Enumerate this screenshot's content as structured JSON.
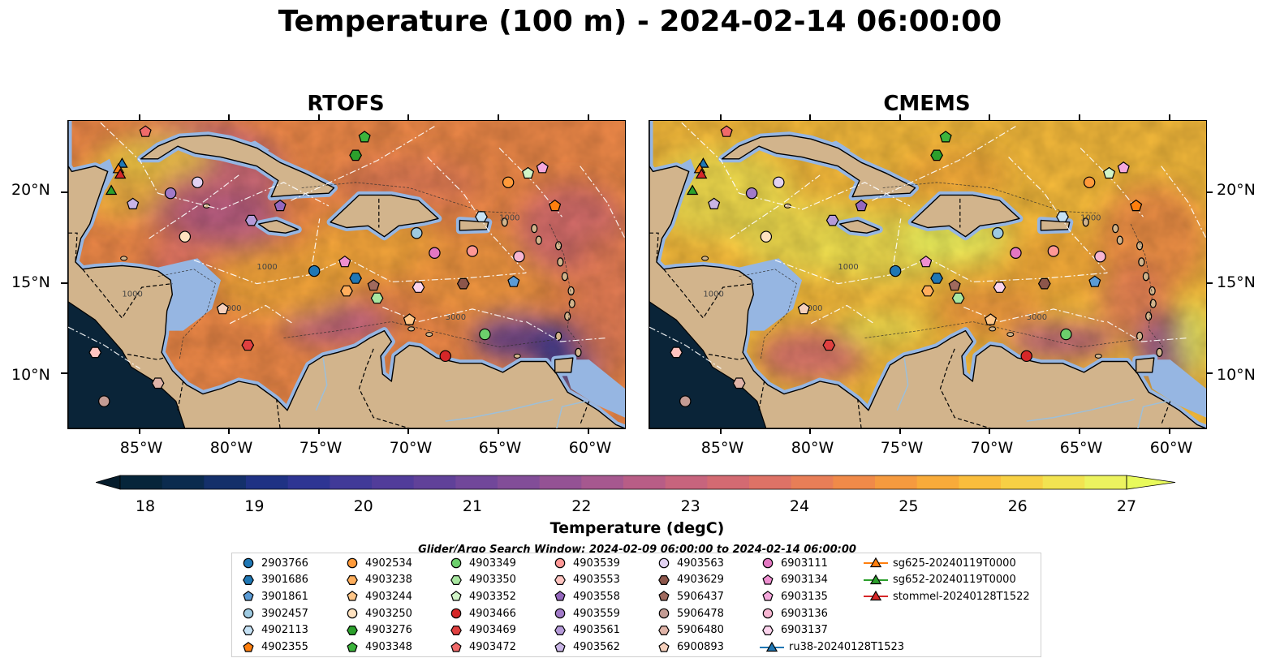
{
  "figure": {
    "title": "Temperature (100 m) - 2024-02-14 06:00:00"
  },
  "panels": [
    {
      "title": "RTOFS",
      "style": "rtofs"
    },
    {
      "title": "CMEMS",
      "style": "cmems"
    }
  ],
  "map_extent": {
    "lon_min": -89.0,
    "lon_max": -58.0,
    "lat_min": 7.0,
    "lat_max": 24.0
  },
  "axes": {
    "lat_ticks": [
      {
        "value": 20,
        "label": "20°N"
      },
      {
        "value": 15,
        "label": "15°N"
      },
      {
        "value": 10,
        "label": "10°N"
      }
    ],
    "lon_ticks": [
      {
        "value": -85,
        "label": "85°W"
      },
      {
        "value": -80,
        "label": "80°W"
      },
      {
        "value": -75,
        "label": "75°W"
      },
      {
        "value": -70,
        "label": "70°W"
      },
      {
        "value": -65,
        "label": "65°W"
      },
      {
        "value": -60,
        "label": "60°W"
      }
    ]
  },
  "colorbar": {
    "label": "Temperature (degC)",
    "min": 18,
    "max": 27,
    "extend": "both",
    "ticks": [
      "18",
      "19",
      "20",
      "21",
      "22",
      "23",
      "24",
      "25",
      "26",
      "27"
    ],
    "colors": [
      "#06253a",
      "#0b2b4e",
      "#14306a",
      "#1f3284",
      "#2e3593",
      "#413a98",
      "#513c9a",
      "#604199",
      "#71479a",
      "#824d98",
      "#945294",
      "#a6588f",
      "#b85d86",
      "#c7647d",
      "#d36a72",
      "#de7266",
      "#e87e57",
      "#f08a49",
      "#f59a3f",
      "#f8ab3a",
      "#f9bd3c",
      "#f7d044",
      "#f2e351",
      "#ecf35f"
    ],
    "under_color": "#051c2c",
    "over_color": "#e8fa5b"
  },
  "colors": {
    "land": "#d2b48c",
    "shelf": "#96b6e2",
    "deep_pacific": "#0a2438",
    "white_dash": "#ffffff"
  },
  "search_window": "Glider/Argo Search Window: 2024-02-09 06:00:00 to 2024-02-14 06:00:00",
  "legend": {
    "items": [
      {
        "name": "2903766",
        "marker": "circle",
        "color": "#1f77b4"
      },
      {
        "name": "3901686",
        "marker": "hexagon",
        "color": "#1f77b4"
      },
      {
        "name": "3901861",
        "marker": "pentagon",
        "color": "#5b9bd5"
      },
      {
        "name": "3902457",
        "marker": "circle",
        "color": "#9ecae1"
      },
      {
        "name": "4902113",
        "marker": "hexagon",
        "color": "#c6e2f5"
      },
      {
        "name": "4902355",
        "marker": "pentagon",
        "color": "#ff7f0e"
      },
      {
        "name": "4902534",
        "marker": "circle",
        "color": "#ff9a3a"
      },
      {
        "name": "4903238",
        "marker": "hexagon",
        "color": "#ffae5c"
      },
      {
        "name": "4903244",
        "marker": "pentagon",
        "color": "#ffc688"
      },
      {
        "name": "4903250",
        "marker": "circle",
        "color": "#ffe2c0"
      },
      {
        "name": "4903276",
        "marker": "hexagon",
        "color": "#2ca02c"
      },
      {
        "name": "4903348",
        "marker": "pentagon",
        "color": "#3cb43c"
      },
      {
        "name": "4903349",
        "marker": "circle",
        "color": "#6ccf6c"
      },
      {
        "name": "4903350",
        "marker": "hexagon",
        "color": "#a8e6a0"
      },
      {
        "name": "4903352",
        "marker": "pentagon",
        "color": "#d2f5c8"
      },
      {
        "name": "4903466",
        "marker": "circle",
        "color": "#d62728"
      },
      {
        "name": "4903469",
        "marker": "hexagon",
        "color": "#e04040"
      },
      {
        "name": "4903472",
        "marker": "pentagon",
        "color": "#f06a6a"
      },
      {
        "name": "4903539",
        "marker": "circle",
        "color": "#ff9896"
      },
      {
        "name": "4903553",
        "marker": "hexagon",
        "color": "#ffc4c0"
      },
      {
        "name": "4903558",
        "marker": "pentagon",
        "color": "#9467bd"
      },
      {
        "name": "4903559",
        "marker": "circle",
        "color": "#a17ac8"
      },
      {
        "name": "4903561",
        "marker": "hexagon",
        "color": "#b59ad8"
      },
      {
        "name": "4903562",
        "marker": "pentagon",
        "color": "#c9b5e6"
      },
      {
        "name": "4903563",
        "marker": "circle",
        "color": "#e2d2f2"
      },
      {
        "name": "4903629",
        "marker": "hexagon",
        "color": "#8c564b"
      },
      {
        "name": "5906437",
        "marker": "pentagon",
        "color": "#a06a5e"
      },
      {
        "name": "5906478",
        "marker": "circle",
        "color": "#c49c94"
      },
      {
        "name": "5906480",
        "marker": "hexagon",
        "color": "#e0b4a8"
      },
      {
        "name": "6900893",
        "marker": "pentagon",
        "color": "#f6d0bc"
      },
      {
        "name": "6903111",
        "marker": "circle",
        "color": "#e377c2"
      },
      {
        "name": "6903134",
        "marker": "pentagon",
        "color": "#ee8fd0"
      },
      {
        "name": "6903135",
        "marker": "pentagon",
        "color": "#f5a8dc"
      },
      {
        "name": "6903136",
        "marker": "circle",
        "color": "#f7b6d2"
      },
      {
        "name": "6903137",
        "marker": "hexagon",
        "color": "#fbd3ec"
      },
      {
        "name": "ru38-20240128T1523",
        "marker": "triangle-line",
        "color": "#1f77b4"
      },
      {
        "name": "sg625-20240119T0000",
        "marker": "triangle-line",
        "color": "#ff7f0e"
      },
      {
        "name": "sg652-20240119T0000",
        "marker": "triangle-line",
        "color": "#2ca02c"
      },
      {
        "name": "stommel-20240128T1522",
        "marker": "triangle-line",
        "color": "#d62728"
      }
    ]
  },
  "observations": [
    {
      "id": "2903766",
      "lon": -75.3,
      "lat": 15.7
    },
    {
      "id": "3901686",
      "lon": -73.0,
      "lat": 15.3
    },
    {
      "id": "3901861",
      "lon": -64.2,
      "lat": 15.1
    },
    {
      "id": "3902457",
      "lon": -69.6,
      "lat": 17.8
    },
    {
      "id": "4902113",
      "lon": -66.0,
      "lat": 18.7
    },
    {
      "id": "4902355",
      "lon": -61.9,
      "lat": 19.3
    },
    {
      "id": "4902534",
      "lon": -64.5,
      "lat": 20.6
    },
    {
      "id": "4903238",
      "lon": -73.5,
      "lat": 14.6
    },
    {
      "id": "4903244",
      "lon": -70.0,
      "lat": 13.0
    },
    {
      "id": "4903250",
      "lon": -82.5,
      "lat": 17.6
    },
    {
      "id": "4903276",
      "lon": -73.0,
      "lat": 22.1
    },
    {
      "id": "4903348",
      "lon": -72.5,
      "lat": 23.1
    },
    {
      "id": "4903349",
      "lon": -65.8,
      "lat": 12.2
    },
    {
      "id": "4903350",
      "lon": -71.8,
      "lat": 14.2
    },
    {
      "id": "4903352",
      "lon": -63.4,
      "lat": 21.1
    },
    {
      "id": "4903466",
      "lon": -68.0,
      "lat": 11.0
    },
    {
      "id": "4903469",
      "lon": -79.0,
      "lat": 11.6
    },
    {
      "id": "4903472",
      "lon": -84.7,
      "lat": 23.4
    },
    {
      "id": "4903539",
      "lon": -66.5,
      "lat": 16.8
    },
    {
      "id": "4903553",
      "lon": -87.5,
      "lat": 11.2
    },
    {
      "id": "4903558",
      "lon": -77.2,
      "lat": 19.3
    },
    {
      "id": "4903559",
      "lon": -83.3,
      "lat": 20.0
    },
    {
      "id": "4903561",
      "lon": -78.8,
      "lat": 18.5
    },
    {
      "id": "4903562",
      "lon": -85.4,
      "lat": 19.4
    },
    {
      "id": "4903563",
      "lon": -81.8,
      "lat": 20.6
    },
    {
      "id": "4903629",
      "lon": -67.0,
      "lat": 15.0
    },
    {
      "id": "5906437",
      "lon": -72.0,
      "lat": 14.9
    },
    {
      "id": "5906478",
      "lon": -87.0,
      "lat": 8.5
    },
    {
      "id": "5906480",
      "lon": -84.0,
      "lat": 9.5
    },
    {
      "id": "6900893",
      "lon": -80.4,
      "lat": 13.6
    },
    {
      "id": "6903111",
      "lon": -68.6,
      "lat": 16.7
    },
    {
      "id": "6903134",
      "lon": -73.6,
      "lat": 16.2
    },
    {
      "id": "6903135",
      "lon": -62.6,
      "lat": 21.4
    },
    {
      "id": "6903136",
      "lon": -63.9,
      "lat": 16.5
    },
    {
      "id": "6903137",
      "lon": -69.5,
      "lat": 14.8
    },
    {
      "id": "ru38-20240128T1523",
      "lon": -86.0,
      "lat": 21.6
    },
    {
      "id": "sg625-20240119T0000",
      "lon": -86.2,
      "lat": 21.3
    },
    {
      "id": "sg652-20240119T0000",
      "lon": -86.6,
      "lat": 20.1
    },
    {
      "id": "stommel-20240128T1522",
      "lon": -86.1,
      "lat": 21.0
    }
  ]
}
